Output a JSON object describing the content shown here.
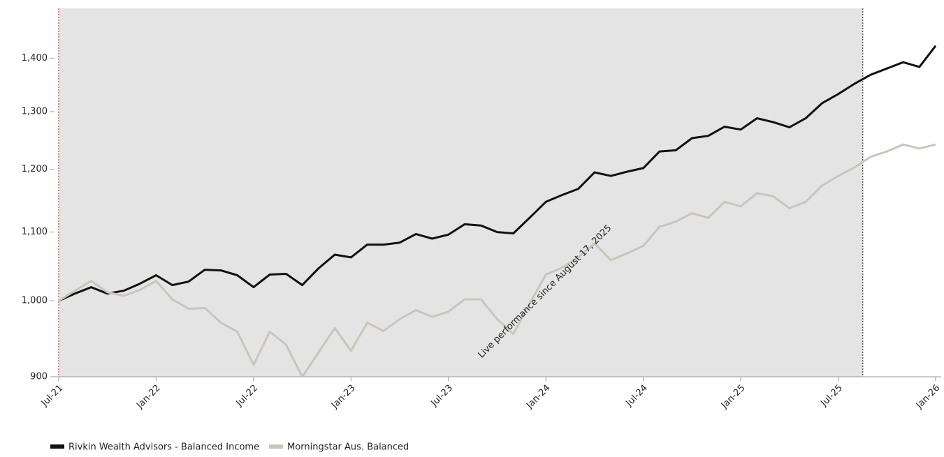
{
  "chart_data": {
    "type": "line",
    "x": [
      "2021-07",
      "2021-08",
      "2021-09",
      "2021-10",
      "2021-11",
      "2021-12",
      "2022-01",
      "2022-02",
      "2022-03",
      "2022-04",
      "2022-05",
      "2022-06",
      "2022-07",
      "2022-08",
      "2022-09",
      "2022-10",
      "2022-11",
      "2022-12",
      "2023-01",
      "2023-02",
      "2023-03",
      "2023-04",
      "2023-05",
      "2023-06",
      "2023-07",
      "2023-08",
      "2023-09",
      "2023-10",
      "2023-11",
      "2023-12",
      "2024-01",
      "2024-02",
      "2024-03",
      "2024-04",
      "2024-05",
      "2024-06",
      "2024-07",
      "2024-08",
      "2024-09",
      "2024-10",
      "2024-11",
      "2024-12",
      "2025-01",
      "2025-02",
      "2025-03",
      "2025-04",
      "2025-05",
      "2025-06",
      "2025-07",
      "2025-08",
      "2025-09",
      "2025-10",
      "2025-11",
      "2025-12",
      "2026-01"
    ],
    "series": [
      {
        "name": "Rivkin Wealth Advisors - Balanced Income",
        "color": "#111111",
        "values": [
          1000,
          1010,
          1019,
          1010,
          1014,
          1024,
          1036,
          1022,
          1027,
          1044,
          1043,
          1036,
          1019,
          1037,
          1038,
          1022,
          1046,
          1066,
          1062,
          1081,
          1081,
          1084,
          1097,
          1090,
          1096,
          1112,
          1110,
          1100,
          1098,
          1122,
          1147,
          1158,
          1168,
          1195,
          1189,
          1196,
          1202,
          1230,
          1232,
          1253,
          1257,
          1273,
          1268,
          1288,
          1281,
          1272,
          1288,
          1315,
          1332,
          1351,
          1368,
          1380,
          1392,
          1383,
          1424
        ]
      },
      {
        "name": "Morningstar Aus. Balanced",
        "color": "#c8c6bb",
        "values": [
          1000,
          1014,
          1028,
          1012,
          1007,
          1015,
          1028,
          1002,
          989,
          990,
          970,
          958,
          915,
          958,
          941,
          900,
          931,
          963,
          933,
          970,
          959,
          975,
          987,
          978,
          985,
          1002,
          1002,
          975,
          955,
          996,
          1037,
          1047,
          1062,
          1083,
          1058,
          1068,
          1079,
          1108,
          1116,
          1129,
          1122,
          1147,
          1140,
          1161,
          1156,
          1137,
          1147,
          1173,
          1189,
          1203,
          1221,
          1230,
          1242,
          1235,
          1242
        ]
      }
    ],
    "xlim": [
      "2021-07",
      "2026-01"
    ],
    "xticks": [
      {
        "value": "2021-07",
        "label": "Jul-21"
      },
      {
        "value": "2022-01",
        "label": "Jan-22"
      },
      {
        "value": "2022-07",
        "label": "Jul-22"
      },
      {
        "value": "2023-01",
        "label": "Jan-23"
      },
      {
        "value": "2023-07",
        "label": "Jul-23"
      },
      {
        "value": "2024-01",
        "label": "Jan-24"
      },
      {
        "value": "2024-07",
        "label": "Jul-24"
      },
      {
        "value": "2025-01",
        "label": "Jan-25"
      },
      {
        "value": "2025-07",
        "label": "Jul-25"
      },
      {
        "value": "2026-01",
        "label": "Jan-26"
      }
    ],
    "ylim": [
      900,
      1500
    ],
    "yticks": [
      900,
      {
        "value": 1000,
        "label": "1,000"
      },
      {
        "value": 1100,
        "label": "1,100"
      },
      {
        "value": 1200,
        "label": "1,200"
      },
      {
        "value": 1300,
        "label": "1,300"
      },
      {
        "value": 1400,
        "label": "1,400"
      }
    ],
    "log_scale": true,
    "shade": {
      "start": "2021-07",
      "end": "2025-08-17",
      "color": "#e4e4e4"
    },
    "annotation": "Live performance since August 17, 2025",
    "legend": "bottom-left"
  }
}
